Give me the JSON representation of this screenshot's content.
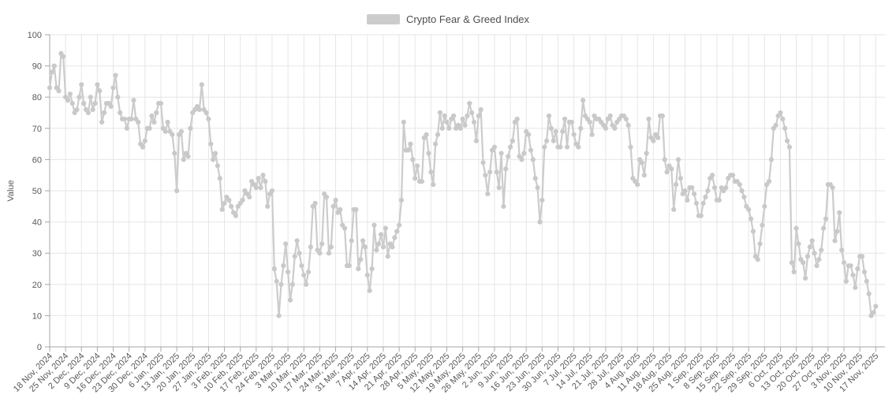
{
  "legend": {
    "label": "Crypto Fear & Greed Index",
    "swatch_color": "#cccccc"
  },
  "colors": {
    "series": "#cccccc",
    "marker": "#c9c9c9",
    "grid": "#e6e6e6",
    "axis": "#a6a6a6",
    "tick_text": "#595959",
    "axis_label_text": "#595959"
  },
  "chart_data": {
    "type": "line",
    "title": "Crypto Fear & Greed Index",
    "xlabel": "",
    "ylabel": "Value",
    "ylim": [
      0,
      100
    ],
    "ytick_step": 10,
    "grid": true,
    "legend_position": "top-center",
    "marker": "circle",
    "x_start_label": "18 Nov, 2024",
    "x_end_label": "17 Nov, 2025",
    "x_tick_interval_days": 7,
    "x_tick_labels": [
      "18 Nov, 2024",
      "25 Nov, 2024",
      "2 Dec, 2024",
      "9 Dec, 2024",
      "16 Dec, 2024",
      "23 Dec, 2024",
      "30 Dec, 2024",
      "6 Jan, 2025",
      "13 Jan, 2025",
      "20 Jan, 2025",
      "27 Jan, 2025",
      "3 Feb, 2025",
      "10 Feb, 2025",
      "17 Feb, 2025",
      "24 Feb, 2025",
      "3 Mar, 2025",
      "10 Mar, 2025",
      "17 Mar, 2025",
      "24 Mar, 2025",
      "31 Mar, 2025",
      "7 Apr, 2025",
      "14 Apr, 2025",
      "21 Apr, 2025",
      "28 Apr, 2025",
      "5 May, 2025",
      "12 May, 2025",
      "19 May, 2025",
      "26 May, 2025",
      "2 Jun, 2025",
      "9 Jun, 2025",
      "16 Jun, 2025",
      "23 Jun, 2025",
      "30 Jun, 2025",
      "7 Jul, 2025",
      "14 Jul, 2025",
      "21 Jul, 2025",
      "28 Jul, 2025",
      "4 Aug, 2025",
      "11 Aug, 2025",
      "18 Aug, 2025",
      "25 Aug, 2025",
      "1 Sep, 2025",
      "8 Sep, 2025",
      "15 Sep, 2025",
      "22 Sep, 2025",
      "29 Sep, 2025",
      "6 Oct, 2025",
      "13 Oct, 2025",
      "20 Oct, 2025",
      "27 Oct, 2025",
      "3 Nov, 2025",
      "10 Nov, 2025",
      "17 Nov, 2025"
    ],
    "values": [
      83,
      88,
      90,
      83,
      82,
      94,
      93,
      80,
      79,
      81,
      78,
      75,
      76,
      80,
      84,
      78,
      76,
      75,
      80,
      76,
      78,
      84,
      82,
      72,
      75,
      78,
      78,
      77,
      83,
      87,
      80,
      75,
      73,
      73,
      70,
      73,
      73,
      79,
      73,
      72,
      65,
      64,
      66,
      70,
      70,
      74,
      72,
      75,
      78,
      78,
      70,
      69,
      72,
      69,
      68,
      62,
      50,
      68,
      69,
      60,
      62,
      61,
      70,
      75,
      76,
      77,
      76,
      84,
      76,
      75,
      73,
      65,
      60,
      62,
      58,
      54,
      44,
      46,
      48,
      47,
      45,
      43,
      42,
      45,
      46,
      47,
      50,
      49,
      48,
      53,
      52,
      51,
      54,
      51,
      55,
      53,
      45,
      49,
      50,
      25,
      21,
      10,
      20,
      26,
      33,
      24,
      15,
      20,
      29,
      34,
      30,
      26,
      23,
      20,
      24,
      32,
      45,
      46,
      31,
      30,
      33,
      49,
      48,
      30,
      32,
      45,
      47,
      43,
      44,
      39,
      38,
      26,
      26,
      34,
      44,
      44,
      25,
      28,
      34,
      32,
      23,
      18,
      25,
      39,
      31,
      33,
      36,
      32,
      38,
      29,
      33,
      32,
      35,
      37,
      39,
      47,
      72,
      63,
      63,
      65,
      60,
      54,
      58,
      53,
      53,
      67,
      68,
      62,
      56,
      52,
      65,
      68,
      75,
      70,
      74,
      72,
      70,
      73,
      74,
      70,
      71,
      70,
      73,
      71,
      74,
      78,
      75,
      72,
      66,
      74,
      76,
      59,
      55,
      49,
      56,
      63,
      64,
      56,
      51,
      62,
      45,
      57,
      61,
      64,
      66,
      72,
      73,
      61,
      60,
      62,
      69,
      68,
      63,
      60,
      54,
      51,
      40,
      47,
      64,
      66,
      74,
      70,
      66,
      69,
      64,
      64,
      69,
      73,
      64,
      72,
      72,
      68,
      65,
      64,
      70,
      79,
      74,
      73,
      72,
      68,
      74,
      73,
      73,
      72,
      71,
      70,
      73,
      74,
      71,
      70,
      72,
      73,
      74,
      74,
      73,
      71,
      64,
      54,
      53,
      52,
      60,
      59,
      55,
      62,
      73,
      67,
      66,
      68,
      67,
      74,
      74,
      60,
      56,
      58,
      57,
      44,
      52,
      60,
      54,
      49,
      50,
      47,
      51,
      51,
      49,
      46,
      42,
      42,
      46,
      48,
      50,
      54,
      55,
      51,
      47,
      47,
      51,
      50,
      51,
      54,
      55,
      55,
      53,
      53,
      52,
      50,
      48,
      45,
      44,
      41,
      37,
      29,
      28,
      33,
      39,
      45,
      52,
      53,
      60,
      70,
      71,
      74,
      75,
      73,
      70,
      66,
      64,
      27,
      24,
      38,
      33,
      28,
      27,
      22,
      29,
      32,
      34,
      30,
      26,
      28,
      31,
      38,
      41,
      52,
      52,
      51,
      34,
      37,
      43,
      31,
      27,
      21,
      26,
      26,
      23,
      19,
      25,
      29,
      29,
      24,
      21,
      17,
      10,
      11,
      13
    ]
  }
}
